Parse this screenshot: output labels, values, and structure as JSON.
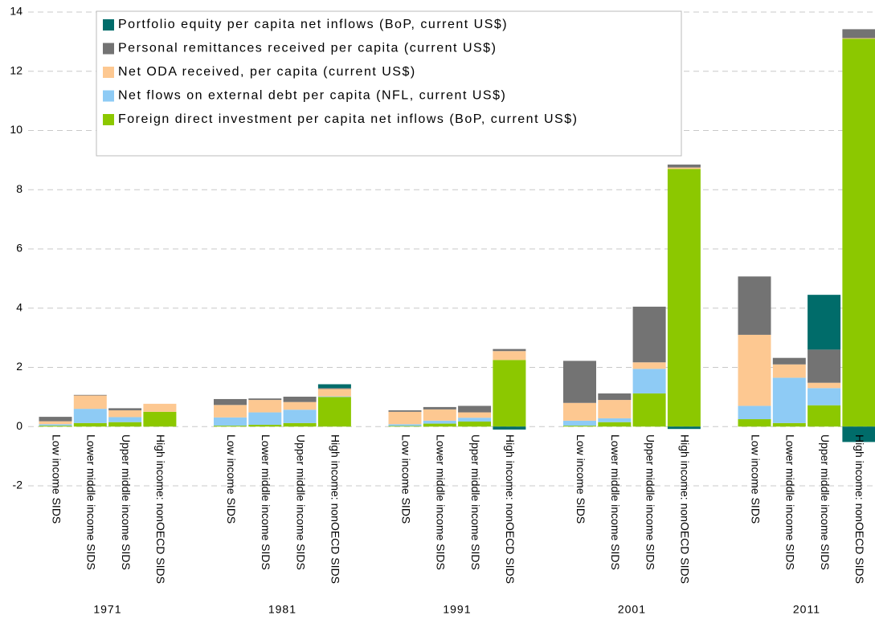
{
  "chart_data": {
    "type": "stacked_bar",
    "groups": [
      "1971",
      "1981",
      "1991",
      "2001",
      "2011"
    ],
    "categories": [
      "Low income SIDS",
      "Lower middle income SIDS",
      "Upper middle income SIDS",
      "High income: nonOECD SIDS"
    ],
    "ylim": [
      -2,
      14
    ],
    "yticks": [
      -2,
      0,
      2,
      4,
      6,
      8,
      10,
      12,
      14
    ],
    "grid": true,
    "series": [
      {
        "name": "Foreign direct investment per capita net inflows (BoP, current US$)",
        "color": "#8cc800",
        "values": [
          [
            0.03,
            0.12,
            0.15,
            0.5
          ],
          [
            0.03,
            0.06,
            0.12,
            1.0
          ],
          [
            0.02,
            0.1,
            0.17,
            2.25
          ],
          [
            0.03,
            0.15,
            1.12,
            8.7
          ],
          [
            0.25,
            0.12,
            0.72,
            13.1
          ]
        ]
      },
      {
        "name": "Net flows on external debt per capita (NFL, current US$)",
        "color": "#8ecbf5",
        "values": [
          [
            0.05,
            0.48,
            0.17,
            0
          ],
          [
            0.28,
            0.42,
            0.45,
            0.02
          ],
          [
            0.06,
            0.1,
            0.13,
            0
          ],
          [
            0.17,
            0.13,
            0.83,
            0
          ],
          [
            0.45,
            1.53,
            0.58,
            0
          ]
        ]
      },
      {
        "name": "Net ODA received, per capita (current US$)",
        "color": "#fdc891",
        "values": [
          [
            0.1,
            0.45,
            0.23,
            0.27
          ],
          [
            0.42,
            0.42,
            0.26,
            0.25
          ],
          [
            0.42,
            0.38,
            0.18,
            0.3
          ],
          [
            0.6,
            0.62,
            0.22,
            0.05
          ],
          [
            2.4,
            0.45,
            0.18,
            0.02
          ]
        ]
      },
      {
        "name": "Personal remittances received per capita (current US$)",
        "color": "#737373",
        "values": [
          [
            0.15,
            0.02,
            0.07,
            0
          ],
          [
            0.2,
            0.05,
            0.18,
            0.03
          ],
          [
            0.05,
            0.08,
            0.22,
            0.07
          ],
          [
            1.42,
            0.22,
            1.88,
            0.1
          ],
          [
            1.97,
            0.22,
            1.12,
            0.3
          ]
        ]
      },
      {
        "name": "Portfolio equity per capita net inflows (BoP, current US$)",
        "color": "#006c6a",
        "values": [
          [
            0,
            0,
            0,
            0
          ],
          [
            0,
            0,
            0,
            0.13
          ],
          [
            0,
            0,
            0,
            -0.1
          ],
          [
            0,
            0,
            0,
            -0.08
          ],
          [
            0,
            0,
            1.85,
            -0.52
          ]
        ]
      }
    ]
  }
}
